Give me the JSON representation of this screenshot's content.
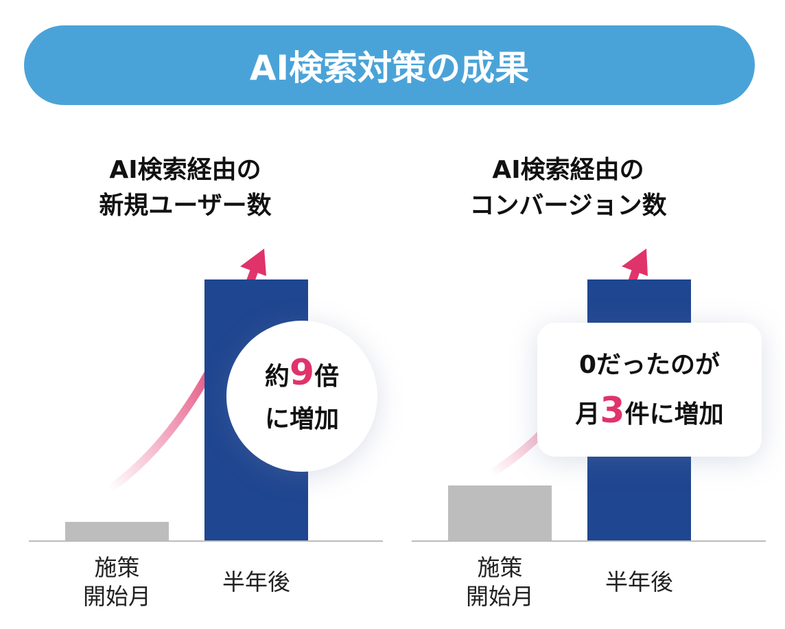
{
  "header": {
    "title": "AI検索対策の成果"
  },
  "chart_data": [
    {
      "type": "bar",
      "title": [
        "AI検索経由の",
        "新規ユーザー数"
      ],
      "categories": [
        "施策\n開始月",
        "半年後"
      ],
      "values": [
        7,
        100
      ],
      "colors": [
        "#bdbdbd",
        "#1f4690"
      ],
      "ylim": [
        0,
        100
      ],
      "annotation": [
        "約",
        "9",
        "倍",
        "に増加"
      ]
    },
    {
      "type": "bar",
      "title": [
        "AI検索経由の",
        "コンバージョン数"
      ],
      "categories": [
        "施策\n開始月",
        "半年後"
      ],
      "values": [
        21,
        100
      ],
      "colors": [
        "#bdbdbd",
        "#1f4690"
      ],
      "ylim": [
        0,
        100
      ],
      "annotation": [
        "0だったのが",
        "月",
        "3",
        "件",
        "に増加"
      ]
    }
  ]
}
